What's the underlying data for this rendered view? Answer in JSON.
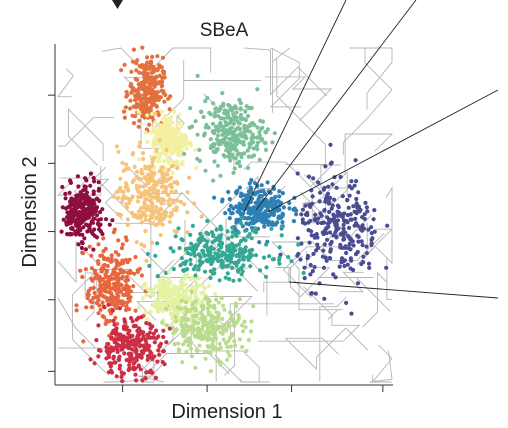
{
  "chart_data": {
    "type": "scatter",
    "title": "SBeA",
    "xlabel": "Dimension 1",
    "ylabel": "Dimension 2",
    "xlim": [
      0,
      10
    ],
    "ylim": [
      0,
      10
    ],
    "grid": false,
    "legend": "none",
    "x_ticks": [
      2,
      4.5,
      7,
      9.7
    ],
    "y_ticks": [
      0.4,
      2.5,
      4.5,
      6.5,
      8.5
    ],
    "background": "watershed segmentation boundaries in light grey",
    "clusters": [
      {
        "color": "#8e0e3f",
        "center": [
          0.8,
          5.0
        ],
        "spread": [
          0.55,
          0.75
        ]
      },
      {
        "color": "#e4703e",
        "center": [
          2.7,
          8.6
        ],
        "spread": [
          0.45,
          0.9
        ]
      },
      {
        "color": "#f3f0a2",
        "center": [
          3.4,
          7.2
        ],
        "spread": [
          0.5,
          0.7
        ]
      },
      {
        "color": "#7cc09a",
        "center": [
          5.2,
          7.4
        ],
        "spread": [
          0.9,
          0.85
        ]
      },
      {
        "color": "#f7c378",
        "center": [
          2.8,
          5.6
        ],
        "spread": [
          0.85,
          1.2
        ]
      },
      {
        "color": "#2d80b4",
        "center": [
          6.0,
          5.2
        ],
        "spread": [
          0.8,
          0.6
        ]
      },
      {
        "color": "#4a4d92",
        "center": [
          8.4,
          4.5
        ],
        "spread": [
          1.1,
          1.4
        ]
      },
      {
        "color": "#35a895",
        "center": [
          4.9,
          3.9
        ],
        "spread": [
          1.4,
          0.65
        ]
      },
      {
        "color": "#e8673f",
        "center": [
          1.7,
          2.9
        ],
        "spread": [
          0.7,
          1.1
        ]
      },
      {
        "color": "#e4f2a3",
        "center": [
          3.6,
          2.5
        ],
        "spread": [
          0.8,
          0.6
        ]
      },
      {
        "color": "#b9dc8e",
        "center": [
          4.5,
          1.7
        ],
        "spread": [
          1.0,
          0.8
        ]
      },
      {
        "color": "#cc2f45",
        "center": [
          2.2,
          1.1
        ],
        "spread": [
          0.9,
          0.75
        ]
      }
    ]
  }
}
